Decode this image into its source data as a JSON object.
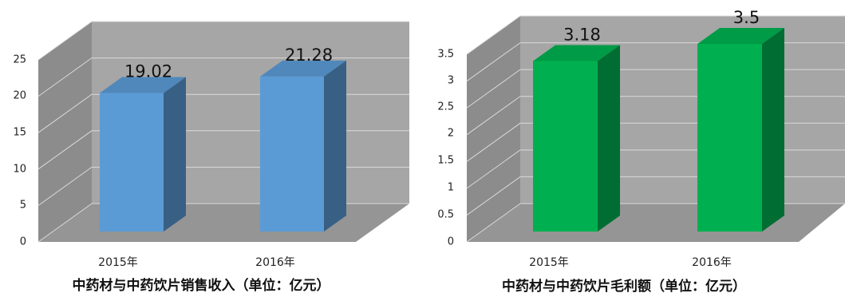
{
  "chart_data": [
    {
      "type": "bar",
      "style": "3d",
      "title": "中药材与中药饮片销售收入（单位：亿元）",
      "categories": [
        "2015年",
        "2016年"
      ],
      "values": [
        19.02,
        21.28
      ],
      "value_labels": [
        "19.02",
        "21.28"
      ],
      "ylim": [
        0,
        25
      ],
      "yticks": [
        "0",
        "5",
        "10",
        "15",
        "20",
        "25"
      ],
      "grid": true,
      "color": "#5b9bd5"
    },
    {
      "type": "bar",
      "style": "3d",
      "title": "中药材与中药饮片毛利额（单位：亿元）",
      "categories": [
        "2015年",
        "2016年"
      ],
      "values": [
        3.18,
        3.5
      ],
      "value_labels": [
        "3.18",
        "3.5"
      ],
      "ylim": [
        0,
        3.5
      ],
      "yticks": [
        "0",
        "0.5",
        "1",
        "1.5",
        "2",
        "2.5",
        "3",
        "3.5"
      ],
      "grid": true,
      "color": "#00b050"
    }
  ]
}
